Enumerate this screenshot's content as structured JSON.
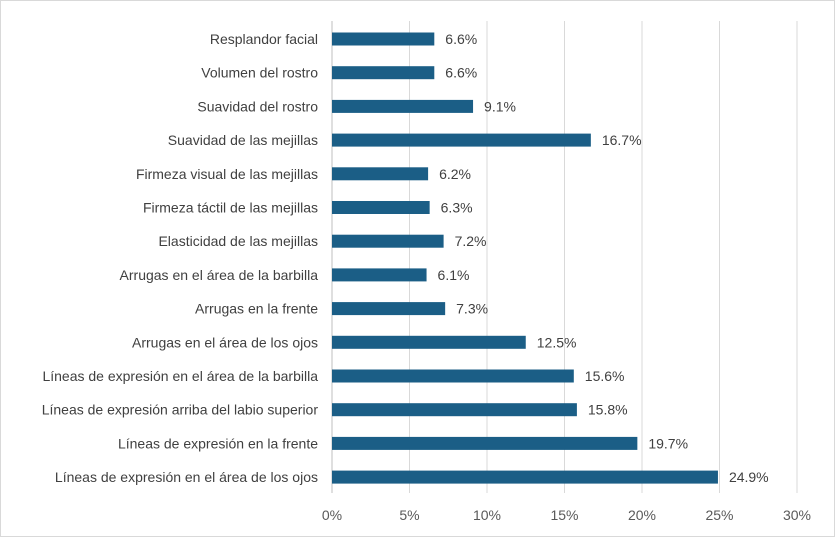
{
  "chart_data": {
    "type": "bar",
    "orientation": "horizontal",
    "categories": [
      "Resplandor facial",
      "Volumen del rostro",
      "Suavidad del rostro",
      "Suavidad de las mejillas",
      "Firmeza visual de las mejillas",
      "Firmeza táctil de las mejillas",
      "Elasticidad de las mejillas",
      "Arrugas en el área de la barbilla",
      "Arrugas en la frente",
      "Arrugas en el área de los ojos",
      "Líneas de expresión en el área de la barbilla",
      "Líneas de expresión arriba del labio superior",
      "Líneas de expresión en la frente",
      "Líneas de expresión en el área de los ojos"
    ],
    "values": [
      6.6,
      6.6,
      9.1,
      16.7,
      6.2,
      6.3,
      7.2,
      6.1,
      7.3,
      12.5,
      15.6,
      15.8,
      19.7,
      24.9
    ],
    "value_labels": [
      "6.6%",
      "6.6%",
      "9.1%",
      "16.7%",
      "6.2%",
      "6.3%",
      "7.2%",
      "6.1%",
      "7.3%",
      "12.5%",
      "15.6%",
      "15.8%",
      "19.7%",
      "24.9%"
    ],
    "x_ticks": [
      0,
      5,
      10,
      15,
      20,
      25,
      30
    ],
    "x_tick_labels": [
      "0%",
      "5%",
      "10%",
      "15%",
      "20%",
      "25%",
      "30%"
    ],
    "xlim": [
      0,
      30
    ],
    "title": "",
    "xlabel": "",
    "ylabel": "",
    "grid": "vertical",
    "legend": "none",
    "colors": {
      "bar": "#1b5e86",
      "grid": "#d9d9d9",
      "text": "#404040"
    }
  }
}
